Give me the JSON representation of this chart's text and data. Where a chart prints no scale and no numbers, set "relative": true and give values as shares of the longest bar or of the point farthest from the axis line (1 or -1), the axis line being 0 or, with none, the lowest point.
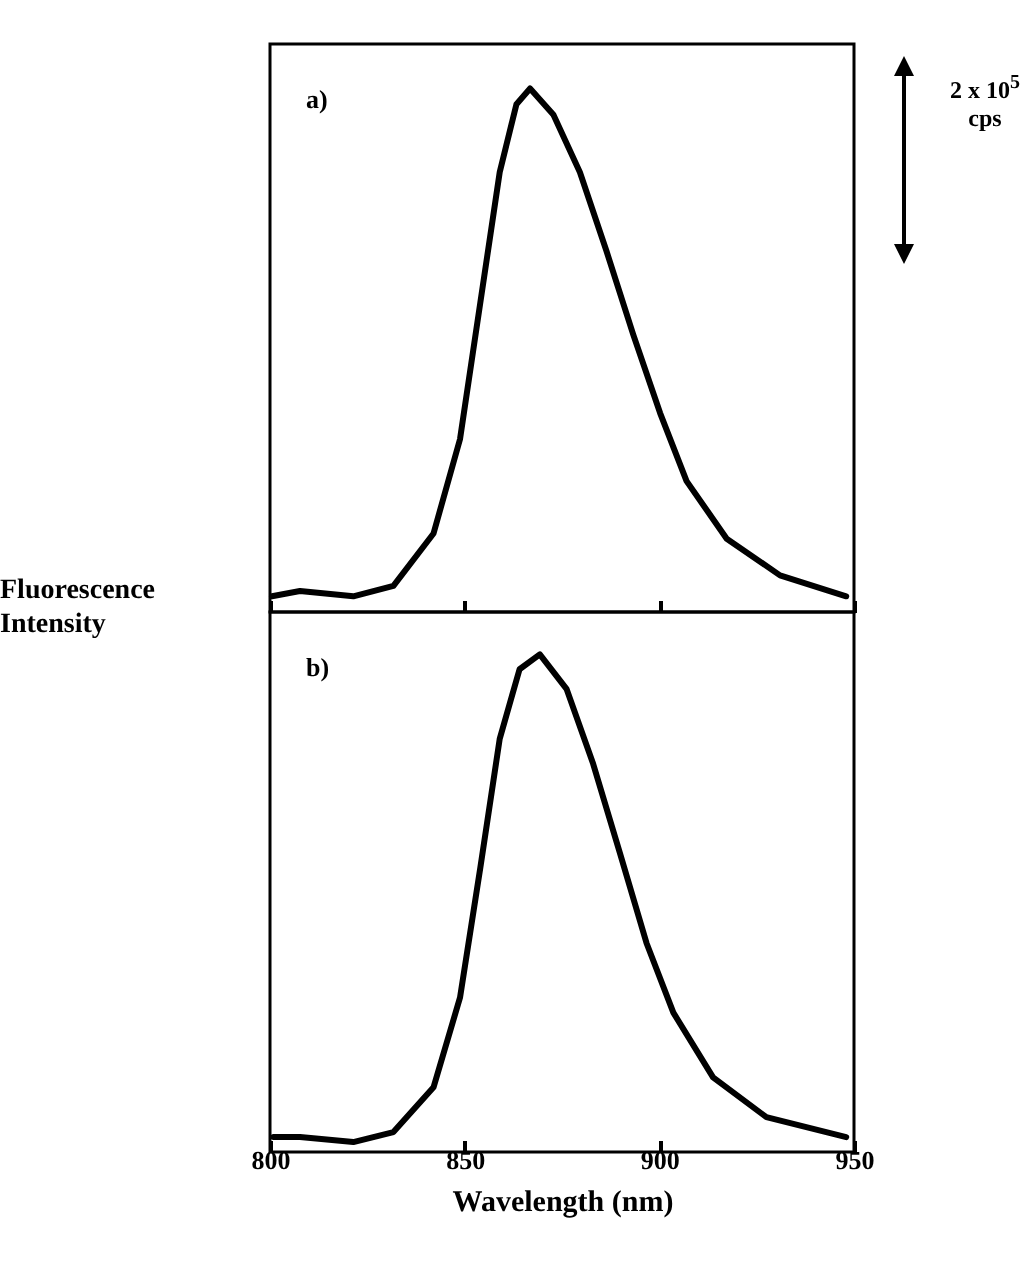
{
  "chart_data": [
    {
      "type": "line",
      "title": "a)",
      "relative": true,
      "xlim": [
        800,
        950
      ],
      "xticks": [
        800,
        850,
        900,
        950
      ],
      "tick_labels": false,
      "ylabel": "Fluorescence Intensity",
      "annotations": [
        "2 x 10$^{5}$ cps"
      ],
      "series": [
        {
          "color": "#000000",
          "x": [
            800.5,
            807.7,
            821.4,
            831.7,
            842,
            848.8,
            854,
            859,
            863.3,
            866.8,
            872.8,
            879.6,
            886.4,
            893.3,
            900.2,
            907,
            917.3,
            931,
            948
          ],
          "values": [
            0.03,
            0.04,
            0.03,
            0.05,
            0.15,
            0.33,
            0.59,
            0.84,
            0.97,
            1,
            0.95,
            0.84,
            0.69,
            0.53,
            0.38,
            0.25,
            0.14,
            0.07,
            0.03
          ]
        }
      ]
    },
    {
      "type": "line",
      "title": "b)",
      "relative": true,
      "xlim": [
        800,
        950
      ],
      "xticks": [
        800,
        850,
        900,
        950
      ],
      "xlabel": "Wavelength (nm)",
      "series": [
        {
          "color": "#000000",
          "x": [
            800.9,
            807.7,
            821.4,
            831.7,
            842,
            848.8,
            854,
            859,
            864.1,
            869.3,
            876.2,
            883,
            889.9,
            896.7,
            903.6,
            913.8,
            927.5,
            948
          ],
          "values": [
            0.03,
            0.03,
            0.02,
            0.04,
            0.13,
            0.31,
            0.57,
            0.83,
            0.97,
            1,
            0.93,
            0.78,
            0.6,
            0.42,
            0.28,
            0.15,
            0.07,
            0.03
          ]
        }
      ]
    }
  ]
}
